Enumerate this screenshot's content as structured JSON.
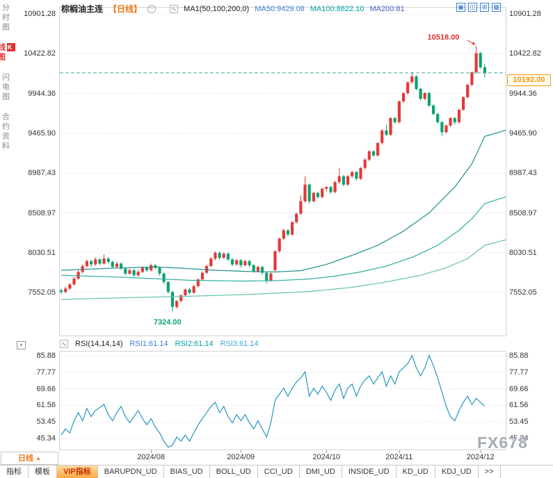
{
  "sidebar": {
    "items": [
      {
        "id": "time-chart",
        "label": "分时图",
        "active": false
      },
      {
        "id": "kline-chart",
        "label": "K线图",
        "active": true
      },
      {
        "id": "flash-chart",
        "label": "闪电图",
        "active": false
      },
      {
        "id": "contract-info",
        "label": "合约资料",
        "active": false
      }
    ]
  },
  "header": {
    "symbol": "棕榈油主连",
    "period": "【日线】",
    "ma_group": "MA1(50,100,200,0)",
    "ma50": "MA50:9429.08",
    "ma100": "MA100:8622.10",
    "ma200": "MA200:81",
    "layout_icons": [
      "layout-single",
      "layout-split-2",
      "layout-grid-4",
      "layout-grid-6"
    ]
  },
  "annotations": {
    "high": "10518.00",
    "current": "10192.00",
    "low": "7324.00"
  },
  "rsi_header": {
    "title": "RSI(14,14,14)",
    "rsi1": "RSI1:61.14",
    "rsi2": "RSI2:61.14",
    "rsi3": "RSI3:61.14"
  },
  "bottom": {
    "period": "日线",
    "tabs": [
      "指标",
      "模板",
      "VIP指标",
      "BARUPDN_UD",
      "BIAS_UD",
      "BOLL_UD",
      "CCI_UD",
      "DMI_UD",
      "INSIDE_UD",
      "KD_UD",
      "KDJ_UD"
    ],
    "more": ">>"
  },
  "watermark": "FX678",
  "colors": {
    "up": "#e23a3a",
    "down": "#0aa371",
    "ma50_line": "#1d8f8b",
    "ma100_line": "#2fae9e",
    "ma200_line": "#63c0b2",
    "rsi_line": "#2596be",
    "dashed_price_line": "#3aa6a0",
    "current_price": "#f5940a",
    "accent_orange": "#f07818",
    "grid": "#e8e8e8",
    "icon_blue": "#3b7fd4",
    "ma50_text": "#3b7fd4",
    "ma100_text": "#00a2a2",
    "ma200_text": "#4a5fd0",
    "rsi1_text": "#3b7fd4",
    "rsi2_text": "#00a2a2",
    "rsi3_text": "#3fa7dc",
    "high_text": "#e03030",
    "low_text": "#0aa371"
  },
  "chart_data": {
    "type": "candlestick",
    "symbol": "棕榈油主连",
    "period": "日线",
    "main": {
      "y_top_value": 10901.28,
      "y_tick_step": 478.46,
      "y_ticks": [
        "10901.28",
        "10422.82",
        "9944.36",
        "9465.90",
        "8987.43",
        "8508.97",
        "8030.51",
        "7552.05"
      ],
      "current_price": 10192.0,
      "high_label": {
        "price": 10518.0,
        "index": 97
      },
      "low_label": {
        "price": 7324.0,
        "index": 26
      },
      "candles": [
        [
          7580,
          7600,
          7530,
          7560
        ],
        [
          7560,
          7625,
          7545,
          7600
        ],
        [
          7600,
          7670,
          7585,
          7650
        ],
        [
          7650,
          7740,
          7635,
          7720
        ],
        [
          7720,
          7820,
          7705,
          7800
        ],
        [
          7800,
          7890,
          7780,
          7870
        ],
        [
          7870,
          7950,
          7850,
          7930
        ],
        [
          7930,
          7945,
          7860,
          7890
        ],
        [
          7890,
          7975,
          7870,
          7950
        ],
        [
          7950,
          7965,
          7880,
          7900
        ],
        [
          7900,
          8010,
          7890,
          7960
        ],
        [
          7960,
          7980,
          7900,
          7920
        ],
        [
          7920,
          7935,
          7840,
          7860
        ],
        [
          7860,
          7925,
          7845,
          7900
        ],
        [
          7900,
          7915,
          7825,
          7840
        ],
        [
          7840,
          7855,
          7760,
          7780
        ],
        [
          7780,
          7840,
          7765,
          7820
        ],
        [
          7820,
          7835,
          7740,
          7760
        ],
        [
          7760,
          7825,
          7745,
          7800
        ],
        [
          7800,
          7870,
          7785,
          7850
        ],
        [
          7850,
          7865,
          7800,
          7820
        ],
        [
          7820,
          7900,
          7805,
          7880
        ],
        [
          7880,
          7895,
          7830,
          7850
        ],
        [
          7850,
          7865,
          7755,
          7780
        ],
        [
          7780,
          7795,
          7655,
          7680
        ],
        [
          7680,
          7690,
          7540,
          7560
        ],
        [
          7560,
          7570,
          7324,
          7380
        ],
        [
          7380,
          7460,
          7355,
          7450
        ],
        [
          7450,
          7530,
          7435,
          7520
        ],
        [
          7520,
          7600,
          7505,
          7590
        ],
        [
          7590,
          7605,
          7530,
          7550
        ],
        [
          7550,
          7645,
          7535,
          7630
        ],
        [
          7630,
          7725,
          7615,
          7710
        ],
        [
          7710,
          7805,
          7695,
          7790
        ],
        [
          7790,
          7890,
          7775,
          7870
        ],
        [
          7870,
          7980,
          7855,
          7960
        ],
        [
          7960,
          8050,
          7940,
          8030
        ],
        [
          8030,
          8045,
          7950,
          7970
        ],
        [
          7970,
          8035,
          7955,
          8020
        ],
        [
          8020,
          8035,
          7930,
          7950
        ],
        [
          7950,
          7965,
          7870,
          7890
        ],
        [
          7890,
          7955,
          7875,
          7940
        ],
        [
          7940,
          7955,
          7855,
          7880
        ],
        [
          7880,
          7945,
          7865,
          7930
        ],
        [
          7930,
          7945,
          7855,
          7880
        ],
        [
          7880,
          7895,
          7790,
          7810
        ],
        [
          7810,
          7875,
          7795,
          7860
        ],
        [
          7860,
          7875,
          7765,
          7790
        ],
        [
          7790,
          7805,
          7660,
          7700
        ],
        [
          7700,
          7795,
          7685,
          7780
        ],
        [
          7820,
          8060,
          7810,
          8050
        ],
        [
          8050,
          8215,
          8030,
          8200
        ],
        [
          8200,
          8320,
          8180,
          8300
        ],
        [
          8300,
          8315,
          8230,
          8250
        ],
        [
          8250,
          8410,
          8235,
          8400
        ],
        [
          8400,
          8515,
          8380,
          8500
        ],
        [
          8500,
          8720,
          8485,
          8650
        ],
        [
          8650,
          8950,
          8630,
          8850
        ],
        [
          8850,
          8865,
          8620,
          8650
        ],
        [
          8650,
          8765,
          8635,
          8750
        ],
        [
          8750,
          8765,
          8680,
          8700
        ],
        [
          8700,
          8810,
          8685,
          8800
        ],
        [
          8800,
          8835,
          8760,
          8820
        ],
        [
          8820,
          8835,
          8740,
          8760
        ],
        [
          8760,
          8895,
          8745,
          8880
        ],
        [
          8880,
          9050,
          8860,
          8950
        ],
        [
          8950,
          8965,
          8830,
          8850
        ],
        [
          8850,
          8965,
          8835,
          8950
        ],
        [
          8950,
          9015,
          8930,
          9000
        ],
        [
          9000,
          9015,
          8900,
          8920
        ],
        [
          8920,
          9060,
          8905,
          9050
        ],
        [
          9050,
          9165,
          9030,
          9150
        ],
        [
          9150,
          9265,
          9130,
          9250
        ],
        [
          9250,
          9265,
          9180,
          9200
        ],
        [
          9200,
          9360,
          9185,
          9350
        ],
        [
          9350,
          9515,
          9330,
          9500
        ],
        [
          9500,
          9570,
          9430,
          9450
        ],
        [
          9450,
          9660,
          9435,
          9650
        ],
        [
          9650,
          9665,
          9580,
          9600
        ],
        [
          9600,
          9860,
          9585,
          9850
        ],
        [
          9850,
          9960,
          9830,
          9950
        ],
        [
          9950,
          10090,
          9930,
          10080
        ],
        [
          10080,
          10200,
          10060,
          10150
        ],
        [
          10150,
          10165,
          9980,
          10000
        ],
        [
          10000,
          10015,
          9860,
          9880
        ],
        [
          9880,
          9960,
          9865,
          9950
        ],
        [
          9950,
          9965,
          9780,
          9800
        ],
        [
          9800,
          9815,
          9680,
          9700
        ],
        [
          9700,
          9715,
          9580,
          9600
        ],
        [
          9600,
          9615,
          9430,
          9480
        ],
        [
          9480,
          9570,
          9465,
          9560
        ],
        [
          9560,
          9660,
          9545,
          9650
        ],
        [
          9650,
          9665,
          9570,
          9600
        ],
        [
          9600,
          9760,
          9585,
          9750
        ],
        [
          9750,
          9910,
          9735,
          9900
        ],
        [
          9900,
          10060,
          9885,
          10050
        ],
        [
          10050,
          10210,
          10030,
          10200
        ],
        [
          10200,
          10518,
          10180,
          10430
        ],
        [
          10430,
          10445,
          10240,
          10260
        ],
        [
          10260,
          10300,
          10140,
          10192
        ]
      ],
      "ma": [
        {
          "name": "MA50",
          "current": 9429.08,
          "anchors": [
            [
              0,
              7820
            ],
            [
              12,
              7845
            ],
            [
              22,
              7860
            ],
            [
              28,
              7845
            ],
            [
              36,
              7820
            ],
            [
              44,
              7805
            ],
            [
              50,
              7800
            ],
            [
              56,
              7815
            ],
            [
              62,
              7890
            ],
            [
              68,
              8000
            ],
            [
              74,
              8120
            ],
            [
              80,
              8290
            ],
            [
              86,
              8510
            ],
            [
              92,
              8820
            ],
            [
              96,
              9100
            ],
            [
              99,
              9429
            ],
            [
              105,
              9520
            ]
          ]
        },
        {
          "name": "MA100",
          "current": 8622.1,
          "anchors": [
            [
              0,
              7760
            ],
            [
              15,
              7735
            ],
            [
              30,
              7700
            ],
            [
              42,
              7690
            ],
            [
              50,
              7695
            ],
            [
              58,
              7715
            ],
            [
              64,
              7750
            ],
            [
              70,
              7800
            ],
            [
              76,
              7870
            ],
            [
              82,
              7975
            ],
            [
              88,
              8120
            ],
            [
              93,
              8300
            ],
            [
              96,
              8440
            ],
            [
              99,
              8622
            ],
            [
              105,
              8720
            ]
          ]
        },
        {
          "name": "MA200",
          "anchors": [
            [
              0,
              7470
            ],
            [
              15,
              7490
            ],
            [
              30,
              7508
            ],
            [
              45,
              7532
            ],
            [
              58,
              7565
            ],
            [
              68,
              7615
            ],
            [
              76,
              7680
            ],
            [
              84,
              7760
            ],
            [
              90,
              7850
            ],
            [
              95,
              7960
            ],
            [
              99,
              8120
            ],
            [
              105,
              8200
            ]
          ]
        }
      ]
    },
    "rsi": {
      "y_top_value": 85.88,
      "y_ticks": [
        "85.88",
        "77.77",
        "69.66",
        "61.56",
        "53.45",
        "45.34"
      ],
      "current": [
        61.14,
        61.14,
        61.14
      ],
      "anchors": [
        [
          0,
          47
        ],
        [
          1,
          50
        ],
        [
          2,
          48
        ],
        [
          3,
          54
        ],
        [
          4,
          58
        ],
        [
          5,
          54
        ],
        [
          6,
          60
        ],
        [
          7,
          56
        ],
        [
          8,
          59
        ],
        [
          10,
          62
        ],
        [
          11,
          57
        ],
        [
          12,
          54
        ],
        [
          13,
          58
        ],
        [
          14,
          61
        ],
        [
          15,
          56
        ],
        [
          16,
          53
        ],
        [
          17,
          56
        ],
        [
          18,
          59
        ],
        [
          19,
          55
        ],
        [
          20,
          52
        ],
        [
          21,
          55
        ],
        [
          22,
          51
        ],
        [
          23,
          48
        ],
        [
          24,
          44
        ],
        [
          25,
          41
        ],
        [
          26,
          42
        ],
        [
          27,
          46
        ],
        [
          28,
          44
        ],
        [
          29,
          47
        ],
        [
          30,
          44
        ],
        [
          31,
          48
        ],
        [
          32,
          52
        ],
        [
          33,
          55
        ],
        [
          34,
          58
        ],
        [
          35,
          61
        ],
        [
          36,
          63
        ],
        [
          37,
          58
        ],
        [
          38,
          61
        ],
        [
          39,
          56
        ],
        [
          40,
          53
        ],
        [
          41,
          57
        ],
        [
          42,
          54
        ],
        [
          43,
          57
        ],
        [
          44,
          53
        ],
        [
          45,
          50
        ],
        [
          46,
          54
        ],
        [
          47,
          50
        ],
        [
          48,
          46
        ],
        [
          49,
          53
        ],
        [
          50,
          64
        ],
        [
          51,
          67
        ],
        [
          52,
          70
        ],
        [
          53,
          66
        ],
        [
          54,
          70
        ],
        [
          55,
          73
        ],
        [
          56,
          75
        ],
        [
          57,
          78
        ],
        [
          58,
          66
        ],
        [
          59,
          70
        ],
        [
          60,
          67
        ],
        [
          61,
          71
        ],
        [
          62,
          68
        ],
        [
          63,
          64
        ],
        [
          64,
          69
        ],
        [
          65,
          72
        ],
        [
          66,
          65
        ],
        [
          67,
          70
        ],
        [
          68,
          72
        ],
        [
          69,
          66
        ],
        [
          70,
          71
        ],
        [
          71,
          74
        ],
        [
          72,
          76
        ],
        [
          73,
          72
        ],
        [
          74,
          75
        ],
        [
          75,
          78
        ],
        [
          76,
          71
        ],
        [
          77,
          76
        ],
        [
          78,
          72
        ],
        [
          79,
          78
        ],
        [
          80,
          80
        ],
        [
          81,
          82
        ],
        [
          82,
          86
        ],
        [
          83,
          80
        ],
        [
          84,
          76
        ],
        [
          85,
          80
        ],
        [
          86,
          86
        ],
        [
          87,
          81
        ],
        [
          88,
          75
        ],
        [
          89,
          68
        ],
        [
          90,
          61
        ],
        [
          91,
          56
        ],
        [
          92,
          54
        ],
        [
          93,
          59
        ],
        [
          94,
          63
        ],
        [
          95,
          66
        ],
        [
          96,
          62
        ],
        [
          97,
          65
        ],
        [
          98,
          63
        ],
        [
          99,
          61.14
        ]
      ]
    },
    "x_labels": [
      {
        "label": "2024/08",
        "index": 21
      },
      {
        "label": "2024/09",
        "index": 42
      },
      {
        "label": "2024/10",
        "index": 62
      },
      {
        "label": "2024/11",
        "index": 79
      },
      {
        "label": "2024/12",
        "index": 98
      }
    ]
  }
}
